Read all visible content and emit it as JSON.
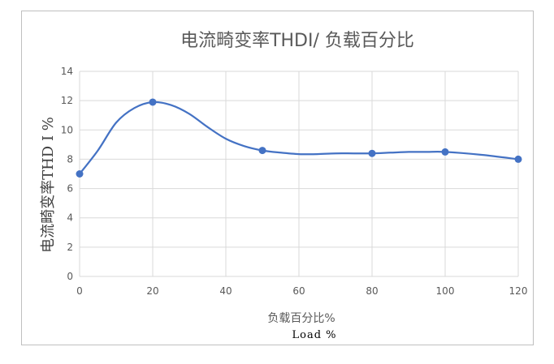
{
  "chart_data": {
    "type": "line",
    "title": "电流畸变率THDI/ 负载百分比",
    "xlabel": "负载百分比%",
    "xlabel_secondary": "Load  %",
    "ylabel": "电流畸变率THD I %",
    "xlim": [
      0,
      120
    ],
    "ylim": [
      0,
      14
    ],
    "x_ticks": [
      "0",
      "20",
      "40",
      "60",
      "80",
      "100",
      "120"
    ],
    "y_ticks": [
      "0",
      "2",
      "4",
      "6",
      "8",
      "10",
      "12",
      "14"
    ],
    "grid": true,
    "legend": "none",
    "smooth": true,
    "marker": "circle",
    "color": "#4472c4",
    "series": [
      {
        "markers_x": [
          0,
          20,
          50,
          80,
          100,
          120
        ],
        "x": [
          0,
          5,
          10,
          15,
          20,
          25,
          30,
          35,
          40,
          45,
          50,
          55,
          60,
          65,
          70,
          75,
          80,
          85,
          90,
          95,
          100,
          110,
          120
        ],
        "values": [
          7.0,
          8.6,
          10.5,
          11.5,
          11.9,
          11.7,
          11.1,
          10.2,
          9.4,
          8.9,
          8.6,
          8.45,
          8.35,
          8.35,
          8.4,
          8.4,
          8.4,
          8.45,
          8.5,
          8.5,
          8.5,
          8.3,
          8.0
        ]
      }
    ]
  }
}
